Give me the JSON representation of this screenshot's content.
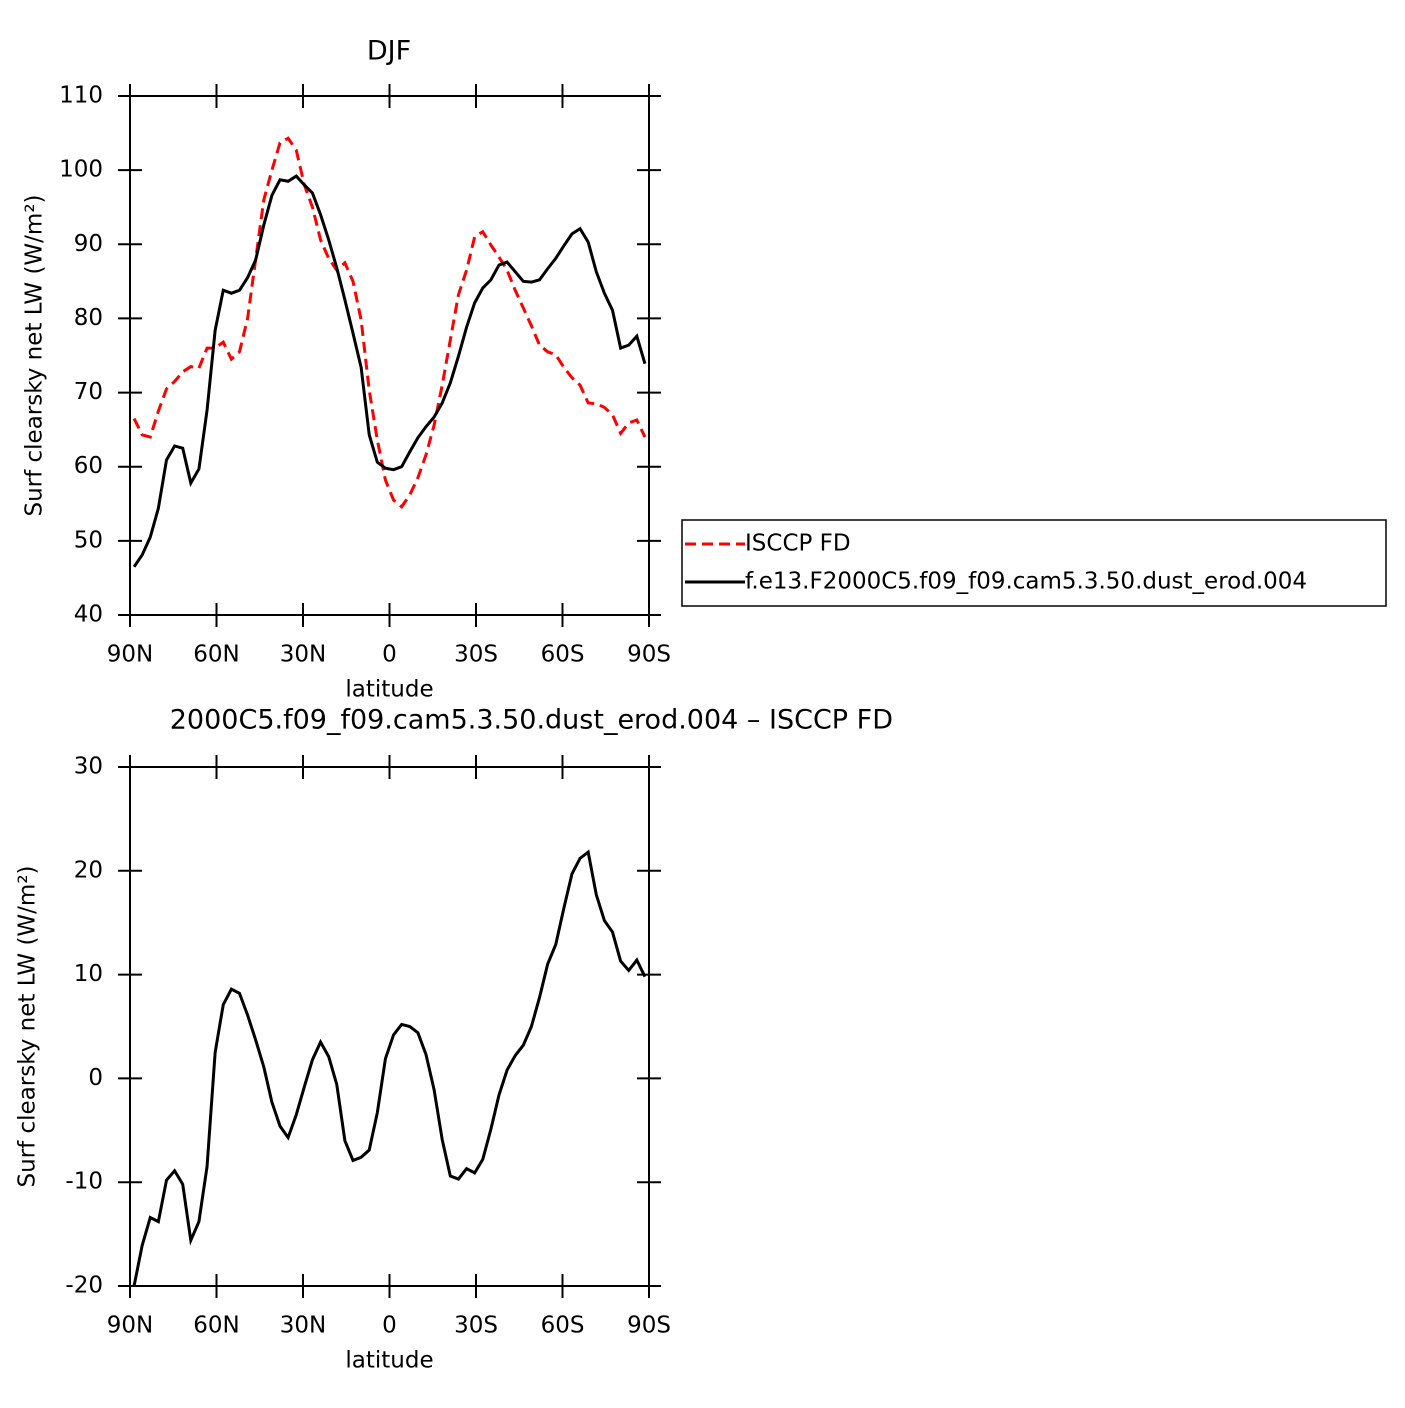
{
  "chart_data": [
    {
      "type": "line",
      "title": "DJF",
      "xlabel": "latitude",
      "ylabel": "Surf clearsky net LW (W/m²)",
      "x": [
        88.59,
        85.78,
        82.97,
        80.16,
        77.34,
        74.53,
        71.72,
        68.91,
        66.09,
        63.28,
        60.47,
        57.66,
        54.84,
        52.03,
        49.22,
        46.41,
        43.59,
        40.78,
        37.97,
        35.16,
        32.34,
        29.53,
        26.72,
        23.91,
        21.09,
        18.28,
        15.47,
        12.66,
        9.84,
        7.03,
        4.22,
        1.41,
        -1.41,
        -4.22,
        -7.03,
        -9.84,
        -12.66,
        -15.47,
        -18.28,
        -21.09,
        -23.91,
        -26.72,
        -29.53,
        -32.34,
        -35.16,
        -37.97,
        -40.78,
        -43.59,
        -46.41,
        -49.22,
        -52.03,
        -54.84,
        -57.66,
        -60.47,
        -63.28,
        -66.09,
        -68.91,
        -71.72,
        -74.53,
        -77.34,
        -80.16,
        -82.97,
        -85.78,
        -88.59
      ],
      "series": [
        {
          "name": "ISCCP FD",
          "color": "#ff0000",
          "dash": true,
          "values": [
            66.5,
            64.3,
            64.0,
            67.5,
            70.5,
            71.5,
            72.8,
            73.5,
            73.3,
            76,
            76,
            76.8,
            74.5,
            75.5,
            80,
            88,
            96,
            100,
            103.7,
            104.3,
            102.7,
            98,
            95,
            90.6,
            88.1,
            86.5,
            87.5,
            85,
            79.8,
            70.3,
            63.6,
            58.2,
            55.5,
            54.6,
            56.2,
            58.5,
            61.6,
            65.6,
            71,
            77.1,
            83.2,
            86.5,
            91,
            91.7,
            89.9,
            88.3,
            86.5,
            83.8,
            81.4,
            79,
            76.4,
            75.5,
            75.1,
            73.4,
            72,
            71,
            68.6,
            68.5,
            68,
            67,
            64.5,
            65.9,
            66.3,
            64
          ]
        },
        {
          "name": "f.e13.F2000C5.f09_f09.cam5.3.50.dust_erod.004",
          "color": "#000000",
          "dash": false,
          "values": [
            46.5,
            48.1,
            50.5,
            54.4,
            60.9,
            62.8,
            62.5,
            57.8,
            59.7,
            67.6,
            78.4,
            83.8,
            83.4,
            83.8,
            85.5,
            87.9,
            92.6,
            96.6,
            98.7,
            98.5,
            99.2,
            98.0,
            96.9,
            94.0,
            90.6,
            86.8,
            82.5,
            78.0,
            73.4,
            64.3,
            60.6,
            59.8,
            59.6,
            60.0,
            62.0,
            63.9,
            65.4,
            66.7,
            68.6,
            71.3,
            74.9,
            78.8,
            82.1,
            84.1,
            85.2,
            87.2,
            87.6,
            86.3,
            85.0,
            84.9,
            85.2,
            86.7,
            88.1,
            89.8,
            91.4,
            92.1,
            90.3,
            86.3,
            83.4,
            81.1,
            76.0,
            76.4,
            77.6,
            73.9
          ]
        }
      ],
      "xlim": [
        90,
        -90
      ],
      "xticks": [
        {
          "value": 90,
          "label": "90N"
        },
        {
          "value": 60,
          "label": "60N"
        },
        {
          "value": 30,
          "label": "30N"
        },
        0,
        {
          "value": -30,
          "label": "30S"
        },
        {
          "value": -60,
          "label": "60S"
        },
        {
          "value": -90,
          "label": "90S"
        }
      ],
      "ylim": [
        40,
        110
      ],
      "yticks": [
        40,
        50,
        60,
        70,
        80,
        90,
        100,
        110
      ],
      "legend": "right"
    },
    {
      "type": "line",
      "title": "2000C5.f09_f09.cam5.3.50.dust_erod.004 – ISCCP FD",
      "xlabel": "latitude",
      "ylabel": "Surf clearsky net LW (W/m²)",
      "x": [
        88.59,
        85.78,
        82.97,
        80.16,
        77.34,
        74.53,
        71.72,
        68.91,
        66.09,
        63.28,
        60.47,
        57.66,
        54.84,
        52.03,
        49.22,
        46.41,
        43.59,
        40.78,
        37.97,
        35.16,
        32.34,
        29.53,
        26.72,
        23.91,
        21.09,
        18.28,
        15.47,
        12.66,
        9.84,
        7.03,
        4.22,
        1.41,
        -1.41,
        -4.22,
        -7.03,
        -9.84,
        -12.66,
        -15.47,
        -18.28,
        -21.09,
        -23.91,
        -26.72,
        -29.53,
        -32.34,
        -35.16,
        -37.97,
        -40.78,
        -43.59,
        -46.41,
        -49.22,
        -52.03,
        -54.84,
        -57.66,
        -60.47,
        -63.28,
        -66.09,
        -68.91,
        -71.72,
        -74.53,
        -77.34,
        -80.16,
        -82.97,
        -85.78,
        -88.59
      ],
      "series": [
        {
          "color": "#000000",
          "dash": false,
          "values": [
            -20,
            -16.1,
            -13.4,
            -13.8,
            -9.8,
            -8.9,
            -10.2,
            -15.6,
            -13.8,
            -8.5,
            2.5,
            7.1,
            8.6,
            8.2,
            6.1,
            3.7,
            1.1,
            -2.3,
            -4.6,
            -5.7,
            -3.5,
            -0.8,
            1.8,
            3.5,
            2.1,
            -0.6,
            -6.0,
            -7.9,
            -7.6,
            -6.9,
            -3.3,
            1.9,
            4.2,
            5.2,
            5.0,
            4.4,
            2.3,
            -1.1,
            -5.9,
            -9.4,
            -9.7,
            -8.7,
            -9.1,
            -7.8,
            -4.9,
            -1.6,
            0.8,
            2.2,
            3.2,
            5.0,
            7.8,
            11.0,
            12.9,
            16.4,
            19.7,
            21.2,
            21.8,
            17.7,
            15.2,
            14.1,
            11.3,
            10.4,
            11.4,
            9.8
          ]
        }
      ],
      "xlim": [
        90,
        -90
      ],
      "xticks": [
        {
          "value": 90,
          "label": "90N"
        },
        {
          "value": 60,
          "label": "60N"
        },
        {
          "value": 30,
          "label": "30N"
        },
        0,
        {
          "value": -30,
          "label": "30S"
        },
        {
          "value": -60,
          "label": "60S"
        },
        {
          "value": -90,
          "label": "90S"
        }
      ],
      "ylim": [
        -20,
        30
      ],
      "yticks": [
        -20,
        -10,
        0,
        10,
        20,
        30
      ]
    }
  ]
}
